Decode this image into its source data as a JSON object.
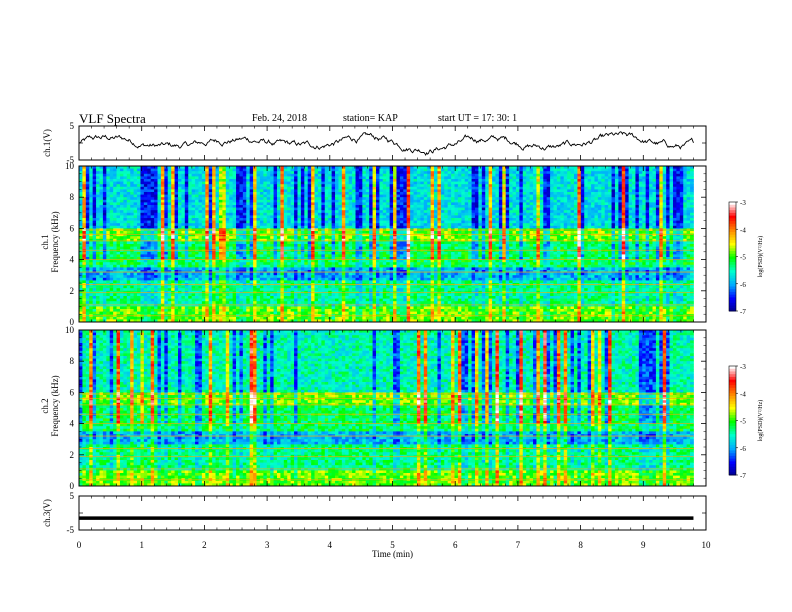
{
  "header": {
    "title": "VLF Spectra",
    "date": "Feb. 24, 2018",
    "station": "station= KAP",
    "start": "start  UT  =    17: 30: 1"
  },
  "chart_data": {
    "type": "heatmap",
    "x_axis": {
      "label": "Time (min)",
      "range": [
        0,
        10
      ],
      "ticks": [
        "0",
        "1",
        "2",
        "3",
        "4",
        "5",
        "6",
        "7",
        "8",
        "9",
        "10"
      ]
    },
    "panels": [
      {
        "id": "ch1-waveform",
        "type": "line",
        "ylabel": "ch.1(V)",
        "ylim": [
          -5,
          5
        ],
        "yticks": [
          "5",
          "-5"
        ],
        "description_color": "#000000"
      },
      {
        "id": "ch1-spectrogram",
        "type": "heatmap",
        "ylabel_top": "ch.1",
        "ylabel": "Frequency (kHz)",
        "ylim": [
          0,
          10
        ],
        "yticks": [
          "0",
          "2",
          "4",
          "6",
          "8",
          "10"
        ],
        "colorbar": {
          "label": "log(PSD)(V²/Hz)",
          "range": [
            -7,
            -3
          ],
          "ticks": [
            "-3",
            "-4",
            "-5",
            "-6",
            "-7"
          ]
        }
      },
      {
        "id": "ch2-spectrogram",
        "type": "heatmap",
        "ylabel_top": "ch.2",
        "ylabel": "Frequency (kHz)",
        "ylim": [
          0,
          10
        ],
        "yticks": [
          "0",
          "2",
          "4",
          "6",
          "8",
          "10"
        ],
        "colorbar": {
          "label": "log(PSD)(V²/Hz)",
          "range": [
            -7,
            -3
          ],
          "ticks": [
            "-3",
            "-4",
            "-5",
            "-6",
            "-7"
          ]
        }
      },
      {
        "id": "ch3-waveform",
        "type": "line",
        "ylabel": "ch.3(V)",
        "ylim": [
          -5,
          5
        ],
        "yticks": [
          "5",
          "-5"
        ],
        "value": -1.5
      }
    ],
    "data_extent_min": 9.8,
    "colormap": [
      "#000088",
      "#0000ff",
      "#00aaff",
      "#00ffcc",
      "#00ff00",
      "#ffff00",
      "#ff8800",
      "#ff0000",
      "#ffffff"
    ]
  }
}
